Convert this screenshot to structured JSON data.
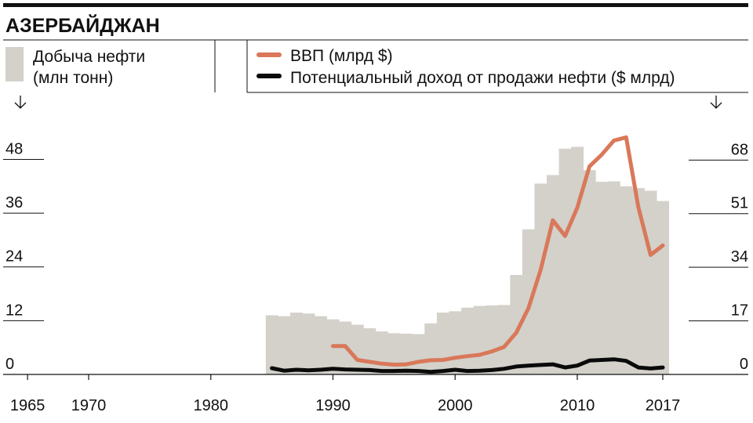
{
  "chart_data": {
    "type": "bar+line",
    "title": "АЗЕРБАЙДЖАН",
    "legend": {
      "bars": "Добыча нефти\n(млн тонн)",
      "line1": "ВВП (млрд $)",
      "line2": "Потенциальный доход от продажи нефти ($ млрд)"
    },
    "colors": {
      "bars": "#d3d1ca",
      "gdp": "#d9785a",
      "revenue": "#0a0a0a"
    },
    "x_range": [
      1963,
      2024
    ],
    "x_ticks": [
      1965,
      1970,
      1980,
      1990,
      2000,
      2010,
      2017
    ],
    "y_left": {
      "range": [
        0,
        57
      ],
      "ticks": [
        0,
        12,
        24,
        36,
        48
      ]
    },
    "y_right": {
      "range": [
        0,
        81
      ],
      "ticks": [
        0,
        17,
        34,
        51,
        68
      ]
    },
    "oil_production": {
      "x": [
        1985,
        1986,
        1987,
        1988,
        1989,
        1990,
        1991,
        1992,
        1993,
        1994,
        1995,
        1996,
        1997,
        1998,
        1999,
        2000,
        2001,
        2002,
        2003,
        2004,
        2005,
        2006,
        2007,
        2008,
        2009,
        2010,
        2011,
        2012,
        2013,
        2014,
        2015,
        2016,
        2017
      ],
      "values": [
        13.2,
        13.0,
        13.8,
        13.6,
        13.0,
        12.3,
        11.8,
        11.1,
        10.3,
        9.6,
        9.2,
        9.1,
        9.0,
        11.4,
        13.8,
        14.1,
        14.9,
        15.3,
        15.4,
        15.5,
        22.2,
        32.4,
        42.6,
        44.5,
        50.4,
        50.8,
        45.6,
        43.0,
        43.1,
        42.0,
        41.6,
        41.0,
        38.7
      ]
    },
    "gdp": {
      "x": [
        1990,
        1991,
        1992,
        1993,
        1994,
        1995,
        1996,
        1997,
        1998,
        1999,
        2000,
        2001,
        2002,
        2003,
        2004,
        2005,
        2006,
        2007,
        2008,
        2009,
        2010,
        2011,
        2012,
        2013,
        2014,
        2015,
        2016,
        2017
      ],
      "values": [
        9.0,
        9.0,
        4.6,
        4.0,
        3.4,
        3.1,
        3.2,
        4.0,
        4.5,
        4.6,
        5.3,
        5.8,
        6.2,
        7.3,
        8.7,
        13.2,
        21.0,
        33.1,
        48.9,
        43.9,
        52.9,
        66.0,
        69.7,
        74.2,
        75.2,
        53.1,
        37.9,
        40.9
      ]
    },
    "oil_revenue": {
      "x": [
        1985,
        1986,
        1987,
        1988,
        1989,
        1990,
        1991,
        1992,
        1993,
        1994,
        1995,
        1996,
        1997,
        1998,
        1999,
        2000,
        2001,
        2002,
        2003,
        2004,
        2005,
        2006,
        2007,
        2008,
        2009,
        2010,
        2011,
        2012,
        2013,
        2014,
        2015,
        2016,
        2017
      ],
      "values": [
        2.0,
        1.2,
        1.5,
        1.3,
        1.5,
        1.8,
        1.6,
        1.5,
        1.4,
        1.1,
        1.1,
        1.2,
        1.1,
        0.8,
        1.1,
        1.5,
        1.1,
        1.2,
        1.4,
        1.8,
        2.5,
        2.8,
        3.0,
        3.2,
        2.2,
        2.8,
        4.4,
        4.6,
        4.8,
        4.3,
        2.2,
        1.9,
        2.2
      ]
    }
  }
}
